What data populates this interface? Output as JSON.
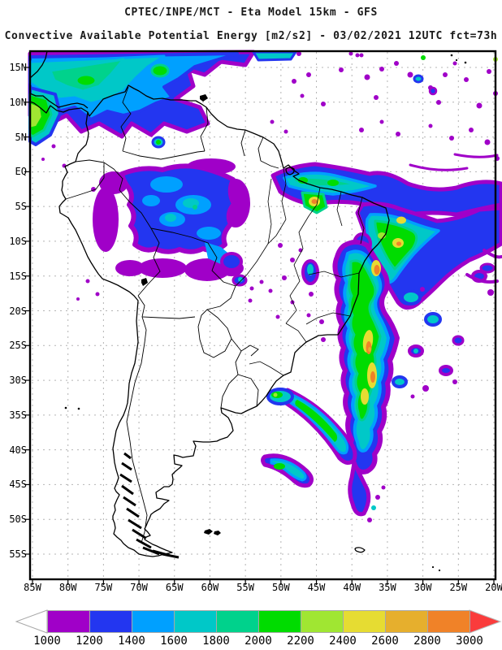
{
  "title": {
    "line1": "CPTEC/INPE/MCT -  Eta Model 15km - GFS",
    "line2": "Convective Available Potential Energy [m2/s2] - 03/02/2021 12UTC fct=73h"
  },
  "map": {
    "lat_labels": [
      "15N",
      "10N",
      "5N",
      "EQ",
      "5S",
      "10S",
      "15S",
      "20S",
      "25S",
      "30S",
      "35S",
      "40S",
      "45S",
      "50S",
      "55S"
    ],
    "lon_labels": [
      "85W",
      "80W",
      "75W",
      "70W",
      "65W",
      "60W",
      "55W",
      "50W",
      "45W",
      "40W",
      "35W",
      "30W",
      "25W",
      "20W"
    ],
    "grid_color": "#b4b4b4"
  },
  "colorbar": {
    "tick_labels": [
      "1000",
      "1200",
      "1400",
      "1600",
      "1800",
      "2000",
      "2200",
      "2400",
      "2600",
      "2800",
      "3000"
    ],
    "segment_colors": [
      "#a000c8",
      "#2336f0",
      "#00a0ff",
      "#00c8c8",
      "#00d28c",
      "#00dc00",
      "#a0e632",
      "#e6dc32",
      "#e6af2d",
      "#f08228"
    ],
    "below_min_color": "#ffffff",
    "above_max_color": "#fa3c3c"
  }
}
